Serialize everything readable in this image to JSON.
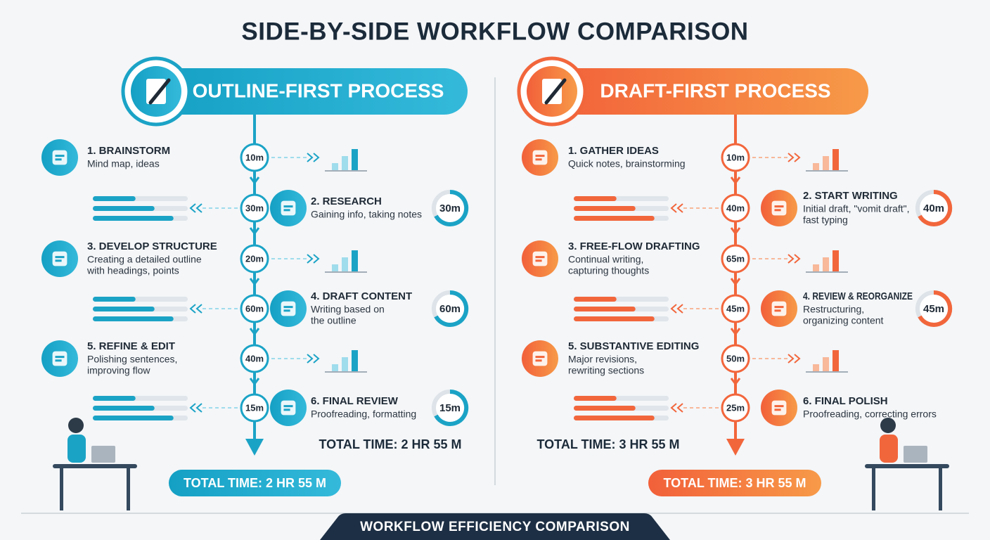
{
  "title": "SIDE-BY-SIDE WORKFLOW COMPARISON",
  "panels": [
    {
      "heading": "OUTLINE-FIRST PROCESS",
      "steps": [
        {
          "title": "1. BRAINSTORM",
          "desc": [
            "Mind map, ideas"
          ],
          "time": "10m"
        },
        {
          "title": "2. RESEARCH",
          "desc": [
            "Gaining info, taking notes"
          ],
          "time": "30m",
          "ring": "30m"
        },
        {
          "title": "3. DEVELOP STRUCTURE",
          "desc": [
            "Creating a detailed outline",
            "with headings, points"
          ],
          "time": "20m"
        },
        {
          "title": "4. DRAFT CONTENT",
          "desc": [
            "Writing based on",
            "the outline"
          ],
          "time": "60m",
          "ring": "60m"
        },
        {
          "title": "5. REFINE & EDIT",
          "desc": [
            "Polishing sentences,",
            "improving flow"
          ],
          "time": "40m"
        },
        {
          "title": "6. FINAL REVIEW",
          "desc": [
            "Proofreading, formatting"
          ],
          "time": "15m",
          "ring": "15m"
        }
      ],
      "total": "TOTAL TIME: 2 HR 55 M",
      "total_badge": "TOTAL TIME: 2 HR 55 M"
    },
    {
      "heading": "DRAFT-FIRST PROCESS",
      "steps": [
        {
          "title": "1. GATHER IDEAS",
          "desc": [
            "Quick notes, brainstorming"
          ],
          "time": "10m"
        },
        {
          "title": "2. START WRITING",
          "desc": [
            "Initial draft, \"vomit draft\",",
            "fast typing"
          ],
          "time": "40m",
          "ring": "40m"
        },
        {
          "title": "3. FREE-FLOW DRAFTING",
          "desc": [
            "Continual writing,",
            "capturing thoughts"
          ],
          "time": "65m"
        },
        {
          "title": "4. REVIEW & REORGANIZE",
          "desc": [
            "Restructuring,",
            "organizing content"
          ],
          "time": "45m",
          "ring": "45m"
        },
        {
          "title": "5. SUBSTANTIVE EDITING",
          "desc": [
            "Major revisions,",
            "rewriting sections"
          ],
          "time": "50m"
        },
        {
          "title": "6. FINAL POLISH",
          "desc": [
            "Proofreading, correcting errors"
          ],
          "time": "25m"
        }
      ],
      "total": "TOTAL TIME: 3 HR 55 M",
      "total_badge": "TOTAL TIME: 3 HR 55 M"
    }
  ],
  "footer": "WORKFLOW EFFICIENCY COMPARISON"
}
